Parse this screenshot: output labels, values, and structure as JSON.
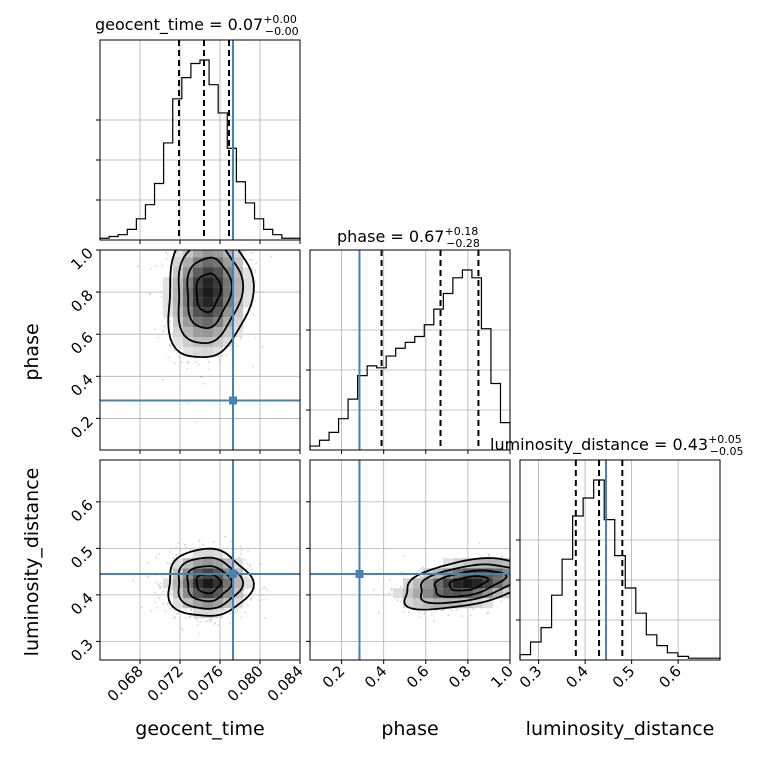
{
  "chart_data": {
    "type": "corner",
    "parameters": [
      "geocent_time",
      "phase",
      "luminosity_distance"
    ],
    "colors": {
      "truth": "#4682b4",
      "samples": "#808080",
      "density_dark": "#000000"
    },
    "titles": [
      {
        "param": "geocent_time",
        "prefix": "geocent_time = 0.07",
        "sup": "+0.00",
        "sub": "−0.00"
      },
      {
        "param": "phase",
        "prefix": "phase = 0.67",
        "sup": "+0.18",
        "sub": "−0.28"
      },
      {
        "param": "luminosity_distance",
        "prefix": "luminosity_distance = 0.43",
        "sup": "+0.05",
        "sub": "−0.05"
      }
    ],
    "axes": {
      "geocent_time": {
        "range": [
          0.064,
          0.084
        ],
        "ticks": [
          0.068,
          0.072,
          0.076,
          0.08,
          0.084
        ],
        "tick_labels": [
          "0.068",
          "0.072",
          "0.076",
          "0.080",
          "0.084"
        ]
      },
      "phase": {
        "range": [
          0.05,
          1.0
        ],
        "ticks": [
          0.2,
          0.4,
          0.6,
          0.8,
          1.0
        ],
        "tick_labels": [
          "0.2",
          "0.4",
          "0.6",
          "0.8",
          "1.0"
        ]
      },
      "luminosity_distance": {
        "range": [
          0.26,
          0.69
        ],
        "ticks": [
          0.3,
          0.4,
          0.5,
          0.6
        ],
        "tick_labels": [
          "0.3",
          "0.4",
          "0.5",
          "0.6"
        ]
      }
    },
    "truths": {
      "geocent_time": 0.0773,
      "phase": 0.285,
      "luminosity_distance": 0.445
    },
    "quantiles": {
      "geocent_time": [
        0.0719,
        0.0744,
        0.0769
      ],
      "phase": [
        0.39,
        0.67,
        0.85
      ],
      "luminosity_distance": [
        0.38,
        0.43,
        0.48
      ]
    },
    "histograms": {
      "geocent_time": [
        1,
        2,
        3,
        6,
        12,
        20,
        32,
        55,
        80,
        92,
        100,
        102,
        88,
        72,
        52,
        33,
        21,
        12,
        6,
        3,
        1,
        1
      ],
      "phase": [
        2,
        5,
        9,
        16,
        26,
        38,
        43,
        42,
        48,
        52,
        55,
        58,
        64,
        72,
        80,
        88,
        92,
        88,
        62,
        34,
        14
      ],
      "luminosity_distance": [
        3,
        10,
        18,
        36,
        56,
        80,
        90,
        100,
        78,
        58,
        40,
        26,
        14,
        8,
        4,
        2,
        1,
        1,
        1
      ]
    },
    "density_peaks": {
      "phase_vs_geocent_time": {
        "x": 0.0748,
        "y": 0.8
      },
      "luminosity_distance_vs_geocent_time": {
        "x": 0.0748,
        "y": 0.425
      },
      "luminosity_distance_vs_phase": {
        "x": 0.8,
        "y": 0.425
      }
    }
  }
}
